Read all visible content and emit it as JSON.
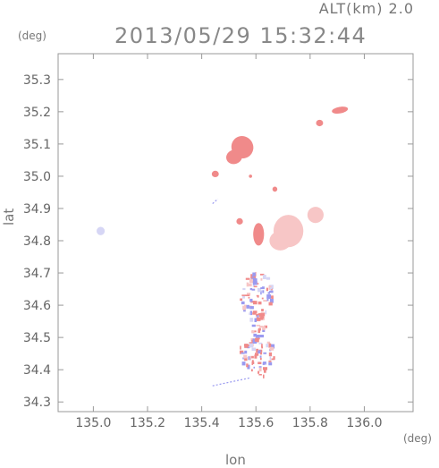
{
  "header": {
    "altitude_label": "ALT(km) 2.0",
    "timestamp": "2013/05/29 15:32:44"
  },
  "axes": {
    "x_unit": "(deg)",
    "y_unit": "(deg)",
    "x_label": "lon",
    "y_label": "lat",
    "x_ticks": [
      "135.0",
      "135.2",
      "135.4",
      "135.6",
      "135.8",
      "136.0"
    ],
    "y_ticks": [
      "35.3",
      "35.2",
      "35.1",
      "35.0",
      "34.9",
      "34.8",
      "34.7",
      "34.6",
      "34.5",
      "34.4",
      "34.3"
    ]
  },
  "map": {
    "xlim": [
      134.87,
      136.18
    ],
    "ylim": [
      34.27,
      35.38
    ],
    "colors": {
      "positive": "#f08a8a",
      "positive_light": "#f7c6c6",
      "negative": "#9a9af0",
      "negative_light": "#d6d6f5",
      "frame": "#999999"
    },
    "regions": [
      {
        "name": "echo-blob-north-1",
        "lon": 135.55,
        "lat": 35.09,
        "rx": 0.04,
        "ry": 0.035,
        "rot": -35,
        "tone": "positive"
      },
      {
        "name": "echo-blob-north-2",
        "lon": 135.52,
        "lat": 35.06,
        "rx": 0.03,
        "ry": 0.022,
        "rot": -20,
        "tone": "positive"
      },
      {
        "name": "echo-blob-nw",
        "lon": 135.45,
        "lat": 35.007,
        "rx": 0.013,
        "ry": 0.01,
        "rot": 0,
        "tone": "positive"
      },
      {
        "name": "echo-blob-ne",
        "lon": 135.91,
        "lat": 35.205,
        "rx": 0.03,
        "ry": 0.01,
        "rot": -10,
        "tone": "positive"
      },
      {
        "name": "echo-blob-ne-small",
        "lon": 135.835,
        "lat": 35.165,
        "rx": 0.013,
        "ry": 0.01,
        "rot": 0,
        "tone": "positive"
      },
      {
        "name": "echo-blob-small",
        "lon": 135.58,
        "lat": 35.0,
        "rx": 0.006,
        "ry": 0.005,
        "rot": 0,
        "tone": "positive"
      },
      {
        "name": "echo-blob-mid",
        "lon": 135.67,
        "lat": 34.96,
        "rx": 0.009,
        "ry": 0.008,
        "rot": 0,
        "tone": "positive"
      },
      {
        "name": "echo-blob-east",
        "lon": 135.82,
        "lat": 34.88,
        "rx": 0.03,
        "ry": 0.025,
        "rot": -20,
        "tone": "positive_light"
      },
      {
        "name": "echo-blob-center-1",
        "lon": 135.72,
        "lat": 34.83,
        "rx": 0.055,
        "ry": 0.05,
        "rot": 0,
        "tone": "positive_light"
      },
      {
        "name": "echo-blob-center-2",
        "lon": 135.69,
        "lat": 34.8,
        "rx": 0.04,
        "ry": 0.03,
        "rot": 0,
        "tone": "positive_light"
      },
      {
        "name": "echo-blob-ring-1",
        "lon": 135.54,
        "lat": 34.86,
        "rx": 0.012,
        "ry": 0.01,
        "rot": 0,
        "tone": "positive"
      },
      {
        "name": "echo-blob-ring-2",
        "lon": 135.61,
        "lat": 34.82,
        "rx": 0.02,
        "ry": 0.035,
        "rot": 0,
        "tone": "positive"
      },
      {
        "name": "echo-blob-west",
        "lon": 135.027,
        "lat": 34.83,
        "rx": 0.015,
        "ry": 0.013,
        "rot": 0,
        "tone": "negative_light"
      },
      {
        "name": "echo-blob-south-1",
        "lon": 135.6,
        "lat": 34.63,
        "rx": 0.06,
        "ry": 0.075,
        "rot": 0,
        "tone": "mixed"
      },
      {
        "name": "echo-blob-south-2",
        "lon": 135.6,
        "lat": 34.54,
        "rx": 0.03,
        "ry": 0.04,
        "rot": 0,
        "tone": "mixed"
      },
      {
        "name": "echo-blob-south-3",
        "lon": 135.6,
        "lat": 34.45,
        "rx": 0.07,
        "ry": 0.05,
        "rot": 0,
        "tone": "mixed"
      },
      {
        "name": "echo-blob-south-4",
        "lon": 135.62,
        "lat": 34.395,
        "rx": 0.02,
        "ry": 0.015,
        "rot": 0,
        "tone": "mixed"
      }
    ],
    "streaks": [
      {
        "lon1": 135.44,
        "lat1": 34.35,
        "lon2": 135.58,
        "lat2": 34.375
      },
      {
        "lon1": 135.44,
        "lat1": 34.915,
        "lon2": 135.46,
        "lat2": 34.93
      }
    ]
  }
}
